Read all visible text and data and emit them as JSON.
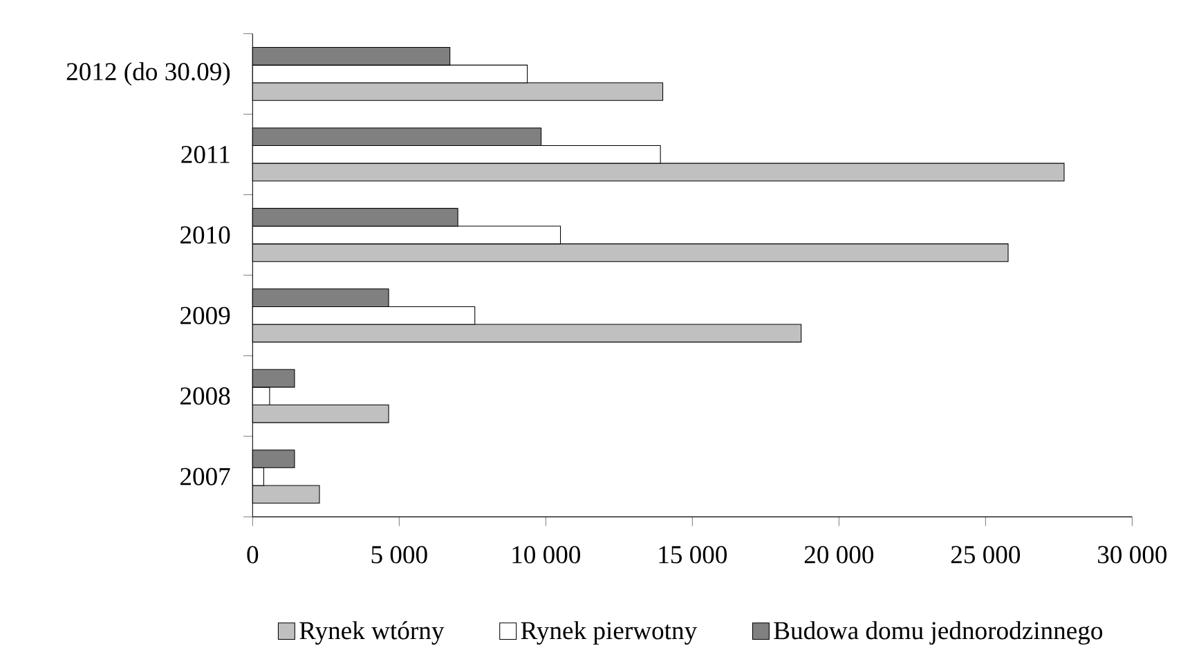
{
  "chart_data": {
    "type": "bar",
    "orientation": "horizontal",
    "categories": [
      "2012 (do 30.09)",
      "2011",
      "2010",
      "2009",
      "2008",
      "2007"
    ],
    "series": [
      {
        "name": "Rynek wtórny",
        "color": "#c0c0c0",
        "values": [
          13990,
          27680,
          25770,
          18710,
          4640,
          2280
        ]
      },
      {
        "name": "Rynek pierwotny",
        "color": "#ffffff",
        "values": [
          9370,
          13910,
          10500,
          7580,
          580,
          380
        ]
      },
      {
        "name": "Budowa domu jednorodzinnego",
        "color": "#808080",
        "values": [
          6730,
          9840,
          7000,
          4640,
          1430,
          1430
        ]
      }
    ],
    "xlim": [
      0,
      30000
    ],
    "xticks": [
      0,
      {
        "value": 5000,
        "label": "5 000"
      },
      {
        "value": 10000,
        "label": "10 000"
      },
      {
        "value": 15000,
        "label": "15 000"
      },
      {
        "value": 20000,
        "label": "20 000"
      },
      {
        "value": 25000,
        "label": "25 000"
      },
      {
        "value": 30000,
        "label": "30 000"
      }
    ],
    "grid": false,
    "legend": "bottom"
  }
}
